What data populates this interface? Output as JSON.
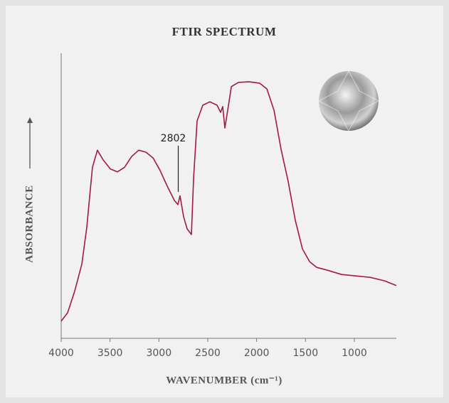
{
  "chart_data": {
    "type": "line",
    "title": "FTIR SPECTRUM",
    "x_label": "WAVENUMBER (cm⁻¹)",
    "y_label": "ABSORBANCE",
    "color": "#a3193f",
    "xlim": [
      4000,
      570
    ],
    "ylim": [
      0,
      100
    ],
    "xticks": [
      4000,
      3500,
      3000,
      2500,
      2000,
      1500,
      1000
    ],
    "x": [
      4000,
      3934,
      3862,
      3789,
      3738,
      3680,
      3629,
      3570,
      3497,
      3425,
      3352,
      3279,
      3206,
      3133,
      3060,
      2988,
      2915,
      2842,
      2806,
      2784,
      2747,
      2711,
      2667,
      2645,
      2609,
      2551,
      2478,
      2405,
      2369,
      2347,
      2325,
      2296,
      2259,
      2187,
      2077,
      1968,
      1895,
      1822,
      1750,
      1677,
      1604,
      1531,
      1458,
      1385,
      1276,
      1130,
      985,
      839,
      694,
      570
    ],
    "values": [
      6,
      9,
      16.5,
      26,
      39,
      60,
      66,
      62.6,
      59.4,
      58.4,
      60,
      63.8,
      66,
      65.3,
      63.3,
      58.9,
      53.4,
      48.4,
      46.9,
      50,
      42.6,
      38.4,
      36.4,
      56.4,
      76.3,
      81.8,
      83,
      81.8,
      79.3,
      81.3,
      73.8,
      80,
      88.3,
      89.8,
      90,
      89.5,
      87.5,
      80,
      66.3,
      55,
      41.4,
      31.4,
      26.9,
      24.9,
      23.9,
      22.4,
      21.9,
      21.4,
      20.2,
      18.5
    ],
    "annotations": [
      {
        "label": "2802",
        "x": 2802
      }
    ]
  }
}
